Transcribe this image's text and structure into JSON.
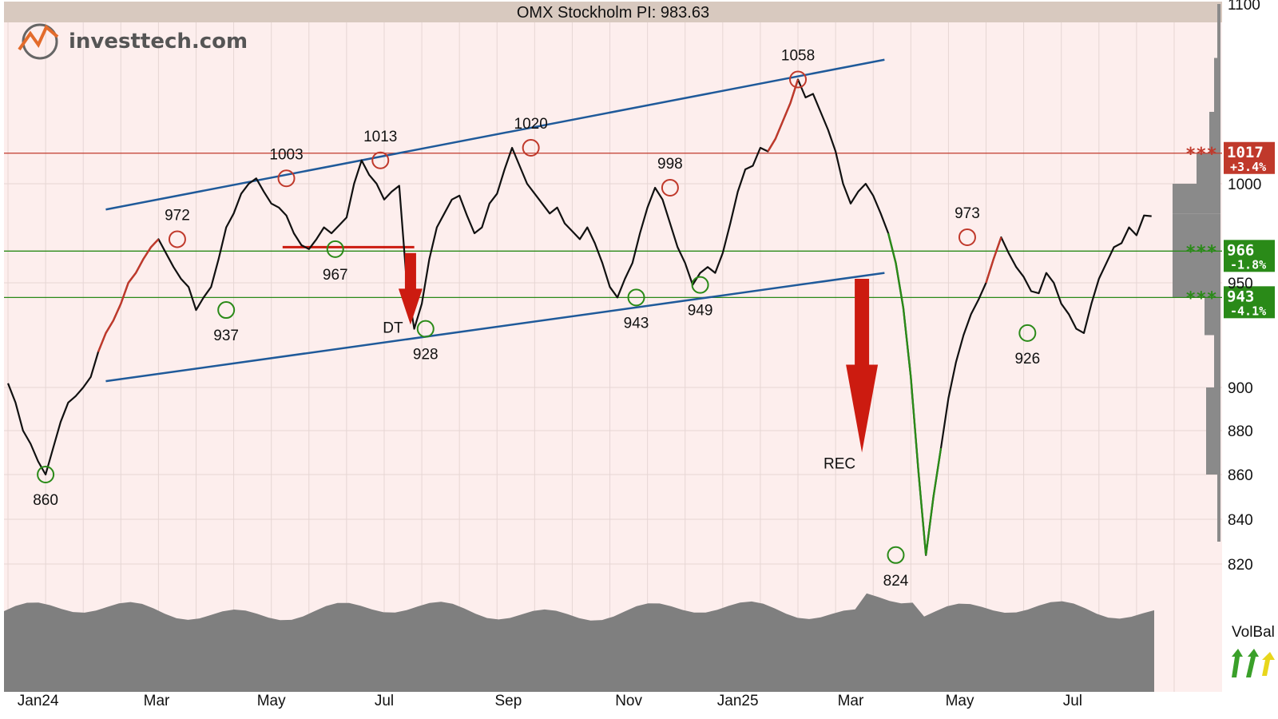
{
  "header": {
    "title": "OMX Stockholm PI: 983.63"
  },
  "logo": {
    "text": "investtech.com"
  },
  "colors": {
    "background": "#fdeeed",
    "grid": "#e6d6d4",
    "price": "#111111",
    "price_up": "#c0392b",
    "price_down": "#2a8a18",
    "trend_channel": "#1f5a9a",
    "resistance": "#c0392b",
    "support": "#2a8a18",
    "volume": "#7f7f7f",
    "title_bar": "#d8c9bf",
    "arrow": "#cc1b10"
  },
  "chart_data": {
    "type": "line",
    "title": "OMX Stockholm PI: 983.63",
    "x_labels": [
      "Jan24",
      "Mar",
      "May",
      "Jul",
      "Sep",
      "Nov",
      "Jan25",
      "Mar",
      "May",
      "Jul"
    ],
    "y_ticks": [
      820,
      840,
      860,
      880,
      900,
      950,
      1000,
      1100
    ],
    "y_tick_labels": [
      "820",
      "840",
      "860",
      "880",
      "900",
      "950",
      "1000",
      "1100"
    ],
    "ylim": [
      813,
      1100
    ],
    "x_range_months": [
      0,
      19
    ],
    "series": [
      {
        "name": "",
        "points": [
          [
            0.0,
            902
          ],
          [
            0.2,
            893
          ],
          [
            0.4,
            880
          ],
          [
            0.6,
            874
          ],
          [
            0.8,
            866
          ],
          [
            1.0,
            860
          ],
          [
            1.2,
            872
          ],
          [
            1.4,
            884
          ],
          [
            1.6,
            893
          ],
          [
            1.8,
            896
          ],
          [
            2.0,
            900
          ],
          [
            2.2,
            905
          ],
          [
            2.4,
            917
          ],
          [
            2.6,
            926
          ],
          [
            2.8,
            932
          ],
          [
            3.0,
            940
          ],
          [
            3.2,
            950
          ],
          [
            3.4,
            955
          ],
          [
            3.6,
            962
          ],
          [
            3.8,
            968
          ],
          [
            4.0,
            972
          ],
          [
            4.2,
            965
          ],
          [
            4.4,
            958
          ],
          [
            4.6,
            952
          ],
          [
            4.8,
            948
          ],
          [
            5.0,
            937
          ],
          [
            5.2,
            943
          ],
          [
            5.4,
            948
          ],
          [
            5.6,
            962
          ],
          [
            5.8,
            978
          ],
          [
            6.0,
            985
          ],
          [
            6.2,
            995
          ],
          [
            6.4,
            1000
          ],
          [
            6.6,
            1003
          ],
          [
            6.8,
            996
          ],
          [
            7.0,
            990
          ],
          [
            7.2,
            988
          ],
          [
            7.4,
            984
          ],
          [
            7.6,
            975
          ],
          [
            7.8,
            969
          ],
          [
            8.0,
            967
          ],
          [
            8.2,
            972
          ],
          [
            8.4,
            978
          ],
          [
            8.6,
            975
          ],
          [
            8.8,
            979
          ],
          [
            9.0,
            983
          ],
          [
            9.2,
            1000
          ],
          [
            9.4,
            1013
          ],
          [
            9.6,
            1005
          ],
          [
            9.8,
            1000
          ],
          [
            10.0,
            992
          ],
          [
            10.2,
            996
          ],
          [
            10.4,
            999
          ],
          [
            10.6,
            950
          ],
          [
            10.8,
            928
          ],
          [
            11.0,
            940
          ],
          [
            11.2,
            962
          ],
          [
            11.4,
            978
          ],
          [
            11.6,
            985
          ],
          [
            11.8,
            992
          ],
          [
            12.0,
            994
          ],
          [
            12.2,
            984
          ],
          [
            12.4,
            975
          ],
          [
            12.6,
            978
          ],
          [
            12.8,
            990
          ],
          [
            13.0,
            995
          ],
          [
            13.2,
            1008
          ],
          [
            13.4,
            1020
          ],
          [
            13.6,
            1010
          ],
          [
            13.8,
            1000
          ],
          [
            14.0,
            995
          ],
          [
            14.2,
            990
          ],
          [
            14.4,
            985
          ],
          [
            14.6,
            988
          ],
          [
            14.8,
            980
          ],
          [
            15.0,
            976
          ],
          [
            15.2,
            972
          ],
          [
            15.4,
            978
          ],
          [
            15.6,
            970
          ],
          [
            15.8,
            960
          ],
          [
            16.0,
            948
          ],
          [
            16.2,
            943
          ],
          [
            16.4,
            952
          ],
          [
            16.6,
            960
          ],
          [
            16.8,
            975
          ],
          [
            17.0,
            988
          ],
          [
            17.2,
            998
          ],
          [
            17.4,
            992
          ],
          [
            17.6,
            980
          ],
          [
            17.8,
            968
          ],
          [
            18.0,
            960
          ],
          [
            18.2,
            949
          ],
          [
            18.4,
            955
          ],
          [
            18.6,
            958
          ],
          [
            18.8,
            955
          ],
          [
            19.0,
            965
          ],
          [
            19.2,
            980
          ],
          [
            19.4,
            996
          ],
          [
            19.6,
            1008
          ],
          [
            19.8,
            1010
          ],
          [
            20.0,
            1020
          ],
          [
            20.2,
            1018
          ],
          [
            20.4,
            1025
          ],
          [
            20.6,
            1035
          ],
          [
            20.8,
            1045
          ],
          [
            21.0,
            1058
          ],
          [
            21.2,
            1048
          ],
          [
            21.4,
            1050
          ],
          [
            21.6,
            1040
          ],
          [
            21.8,
            1030
          ],
          [
            22.0,
            1018
          ],
          [
            22.2,
            1000
          ],
          [
            22.4,
            990
          ],
          [
            22.6,
            996
          ],
          [
            22.8,
            1000
          ],
          [
            23.0,
            994
          ],
          [
            23.2,
            985
          ],
          [
            23.4,
            975
          ],
          [
            23.6,
            960
          ],
          [
            23.8,
            938
          ],
          [
            24.0,
            905
          ],
          [
            24.2,
            862
          ],
          [
            24.4,
            824
          ],
          [
            24.6,
            850
          ],
          [
            24.8,
            872
          ],
          [
            25.0,
            895
          ],
          [
            25.2,
            912
          ],
          [
            25.4,
            925
          ],
          [
            25.6,
            935
          ],
          [
            25.8,
            942
          ],
          [
            26.0,
            950
          ],
          [
            26.2,
            962
          ],
          [
            26.4,
            973
          ],
          [
            26.6,
            965
          ],
          [
            26.8,
            958
          ],
          [
            27.0,
            953
          ],
          [
            27.2,
            946
          ],
          [
            27.4,
            945
          ],
          [
            27.6,
            955
          ],
          [
            27.8,
            950
          ],
          [
            28.0,
            940
          ],
          [
            28.2,
            935
          ],
          [
            28.4,
            928
          ],
          [
            28.6,
            926
          ],
          [
            28.8,
            940
          ],
          [
            29.0,
            952
          ],
          [
            29.2,
            960
          ],
          [
            29.4,
            968
          ],
          [
            29.6,
            970
          ],
          [
            29.8,
            978
          ],
          [
            30.0,
            974
          ],
          [
            30.2,
            984
          ],
          [
            30.4,
            983.63
          ]
        ]
      }
    ],
    "trend_channel": {
      "upper": [
        [
          2.6,
          987
        ],
        [
          23.3,
          1069
        ]
      ],
      "lower": [
        [
          2.6,
          903
        ],
        [
          23.3,
          955
        ]
      ]
    },
    "horizontal_levels": [
      {
        "value": 1017,
        "label": "1017",
        "change": "+3.4%",
        "type": "resistance",
        "stars": "***"
      },
      {
        "value": 966,
        "label": "966",
        "change": "-1.8%",
        "type": "support",
        "stars": "***"
      },
      {
        "value": 943,
        "label": "943",
        "change": "-4.1%",
        "type": "support",
        "stars": "***"
      }
    ],
    "annotations": [
      {
        "x": 1.0,
        "y": 860,
        "label": "860",
        "kind": "low"
      },
      {
        "x": 4.5,
        "y": 972,
        "label": "972",
        "kind": "high"
      },
      {
        "x": 5.8,
        "y": 937,
        "label": "937",
        "kind": "low"
      },
      {
        "x": 7.4,
        "y": 1003,
        "label": "1003",
        "kind": "high"
      },
      {
        "x": 8.7,
        "y": 967,
        "label": "967",
        "kind": "low"
      },
      {
        "x": 9.9,
        "y": 1013,
        "label": "1013",
        "kind": "high"
      },
      {
        "x": 11.1,
        "y": 928,
        "label": "928",
        "kind": "low"
      },
      {
        "x": 13.9,
        "y": 1020,
        "label": "1020",
        "kind": "high"
      },
      {
        "x": 16.7,
        "y": 943,
        "label": "943",
        "kind": "low"
      },
      {
        "x": 17.6,
        "y": 998,
        "label": "998",
        "kind": "high"
      },
      {
        "x": 18.4,
        "y": 949,
        "label": "949",
        "kind": "low"
      },
      {
        "x": 21.0,
        "y": 1058,
        "label": "1058",
        "kind": "high"
      },
      {
        "x": 23.6,
        "y": 824,
        "label": "824",
        "kind": "low"
      },
      {
        "x": 25.5,
        "y": 973,
        "label": "973",
        "kind": "high"
      },
      {
        "x": 27.1,
        "y": 926,
        "label": "926",
        "kind": "low"
      }
    ],
    "signals": [
      {
        "label": "DT",
        "x": 10.7,
        "top": 965,
        "bottom": 930
      },
      {
        "label": "REC",
        "x": 22.7,
        "top": 952,
        "bottom": 870
      }
    ],
    "volume_balance": {
      "label": "VolBal"
    }
  }
}
